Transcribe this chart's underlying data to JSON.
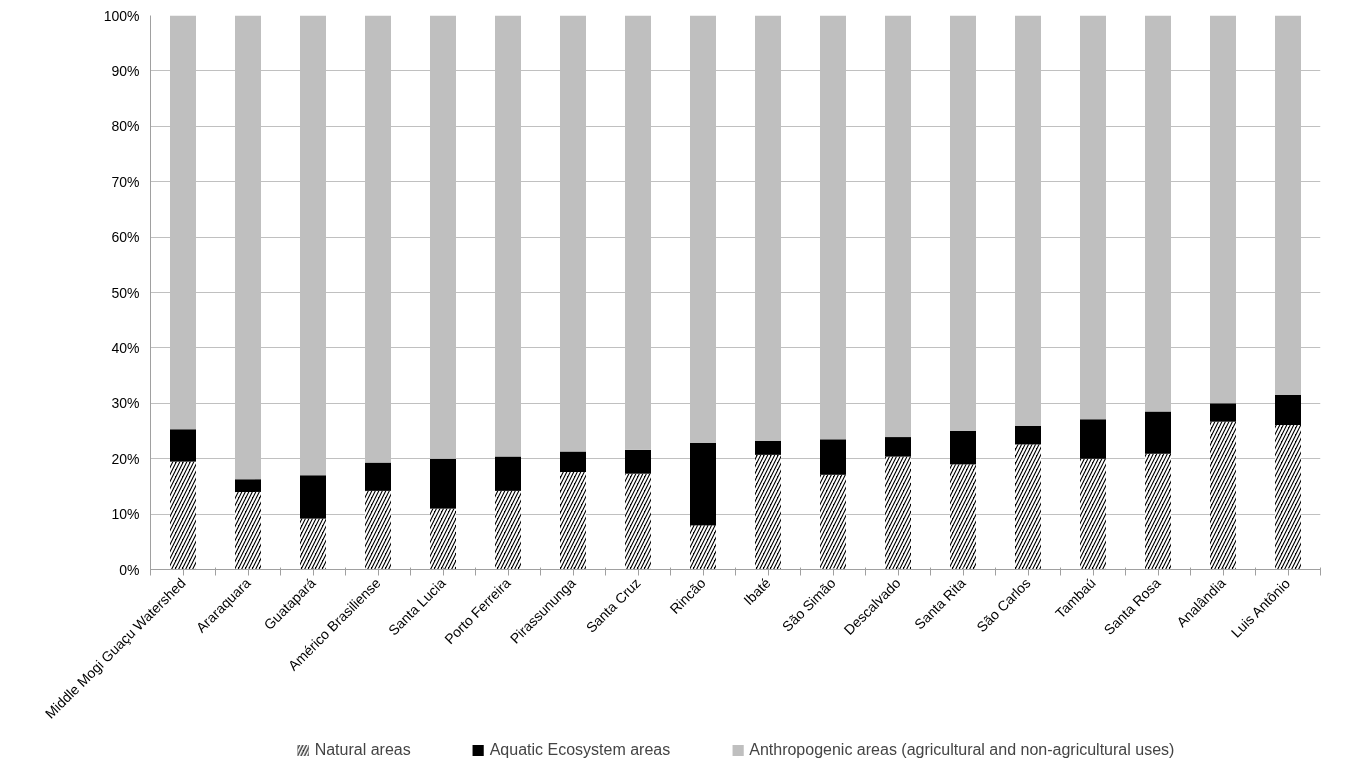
{
  "chart_data": {
    "type": "bar",
    "stacked": true,
    "categories": [
      "Middle Mogi Guaçu Watershed",
      "Araraquara",
      "Guatapará",
      "Américo Brasiliense",
      "Santa Lucia",
      "Porto Ferreira",
      "Pirassununga",
      "Santa Cruz",
      "Rincão",
      "Ibaté",
      "São Simão",
      "Descalvado",
      "Santa Rita",
      "São Carlos",
      "Tambaú",
      "Santa Rosa",
      "Analândia",
      "Luis Antônio"
    ],
    "series": [
      {
        "name": "Natural areas",
        "color": "#000000",
        "values": [
          19.5,
          14.0,
          9.2,
          14.2,
          11.0,
          14.2,
          17.6,
          17.3,
          8.0,
          20.7,
          17.1,
          20.4,
          19.0,
          22.6,
          20.0,
          20.9,
          26.7,
          26.1
        ]
      },
      {
        "name": "Aquatic Ecosystem areas",
        "color": "#000000",
        "values": [
          5.8,
          2.3,
          7.8,
          5.1,
          9.0,
          6.2,
          3.7,
          4.3,
          14.9,
          2.5,
          6.4,
          3.5,
          6.0,
          3.3,
          7.1,
          7.6,
          3.3,
          5.4
        ]
      },
      {
        "name": "Anthropogenic areas (agricultural and non-agricultural uses)",
        "color": "#bfbfbf",
        "values": [
          74.7,
          83.7,
          83.0,
          80.7,
          80.0,
          79.6,
          78.7,
          78.4,
          77.1,
          76.8,
          76.5,
          76.1,
          75.0,
          74.1,
          72.9,
          71.5,
          70.0,
          68.5
        ]
      }
    ],
    "ylim": [
      0,
      100
    ],
    "yticks": [
      {
        "value": 0,
        "label": "0%"
      },
      {
        "value": 10,
        "label": "10%"
      },
      {
        "value": 20,
        "label": "20%"
      },
      {
        "value": 30,
        "label": "30%"
      },
      {
        "value": 40,
        "label": "40%"
      },
      {
        "value": 50,
        "label": "50%"
      },
      {
        "value": 60,
        "label": "60%"
      },
      {
        "value": 70,
        "label": "70%"
      },
      {
        "value": 80,
        "label": "80%"
      },
      {
        "value": 90,
        "label": "90%"
      },
      {
        "value": 100,
        "label": "100%"
      }
    ],
    "grid": "y",
    "legend": "bottom"
  }
}
